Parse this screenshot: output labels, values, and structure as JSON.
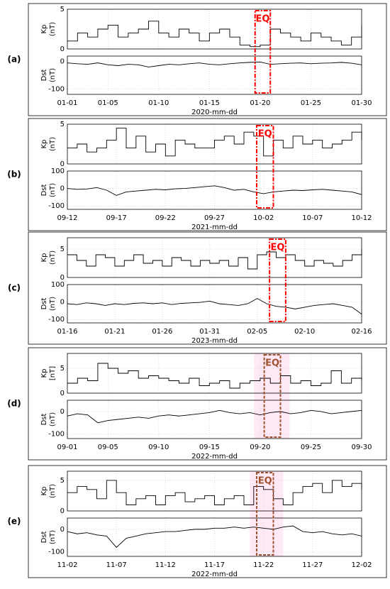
{
  "chart_data": [
    {
      "type": "line",
      "panel_label": "(a)",
      "xlabel": "2020-mm-dd",
      "categories": [
        "01-01",
        null,
        null,
        null,
        "01-05",
        null,
        null,
        null,
        null,
        "01-10",
        null,
        null,
        null,
        null,
        "01-15",
        null,
        null,
        null,
        null,
        "01-20",
        null,
        null,
        null,
        null,
        "01-25",
        null,
        null,
        null,
        null,
        "01-30"
      ],
      "kp": {
        "ylabel": [
          "Kp",
          "(nT)"
        ],
        "ylim": [
          0,
          5
        ],
        "yticks": [
          0,
          5
        ],
        "color": "#000000",
        "values": [
          1,
          2,
          1.5,
          2.5,
          3,
          1.5,
          2,
          2.5,
          3.5,
          2,
          1.5,
          2.5,
          2,
          1,
          2,
          2.5,
          1.5,
          0.5,
          0.3,
          0.5,
          2.5,
          2,
          1.5,
          1,
          2,
          1.5,
          1,
          0.5,
          1.5,
          3
        ]
      },
      "dst": {
        "ylabel": [
          "Dst",
          "(nT)"
        ],
        "ylim": [
          -120,
          20
        ],
        "yticks": [
          -100,
          0
        ],
        "color": "#000000",
        "values": [
          -5,
          -8,
          -10,
          -5,
          -12,
          -15,
          -10,
          -12,
          -20,
          -15,
          -10,
          -12,
          -8,
          -5,
          -10,
          -12,
          -8,
          -5,
          -3,
          -2,
          -10,
          -8,
          -6,
          -5,
          -8,
          -6,
          -5,
          -3,
          -6,
          -12
        ]
      },
      "annotation": "EQ",
      "eq_box": [
        18.5,
        20.0
      ],
      "eq_color": "#ff0000",
      "eq_dash": "6,2,2,2"
    },
    {
      "type": "line",
      "panel_label": "(b)",
      "xlabel": "2021-mm-dd",
      "categories": [
        "09-12",
        null,
        null,
        null,
        null,
        "09-17",
        null,
        null,
        null,
        null,
        "09-22",
        null,
        null,
        null,
        null,
        "09-27",
        null,
        null,
        null,
        null,
        "10-02",
        null,
        null,
        null,
        null,
        "10-07",
        null,
        null,
        null,
        null,
        "10-12"
      ],
      "kp": {
        "ylabel": [
          "Kp",
          "(nT)"
        ],
        "ylim": [
          0,
          5
        ],
        "yticks": [
          0,
          5
        ],
        "color": "#000000",
        "values": [
          2,
          2.5,
          1.5,
          2,
          3,
          4.5,
          2,
          3.5,
          1.5,
          2.5,
          1,
          3,
          2.5,
          2,
          2,
          3,
          3.5,
          2.5,
          4,
          3.5,
          1,
          3,
          2,
          3.5,
          2.5,
          3,
          2,
          2.5,
          3,
          4,
          3
        ]
      },
      "dst": {
        "ylabel": [
          "Dst",
          "(nT)"
        ],
        "ylim": [
          -120,
          100
        ],
        "yticks": [
          -100,
          0,
          100
        ],
        "color": "#000000",
        "values": [
          0,
          -5,
          -3,
          5,
          -10,
          -40,
          -20,
          -15,
          -10,
          -5,
          -8,
          -2,
          0,
          5,
          10,
          15,
          5,
          -10,
          -5,
          -20,
          -30,
          -20,
          -15,
          -10,
          -12,
          -8,
          -5,
          -10,
          -15,
          -20,
          -35
        ]
      },
      "annotation": "EQ",
      "eq_box": [
        19.3,
        21.0
      ],
      "eq_color": "#ff0000",
      "eq_dash": "6,2,2,2"
    },
    {
      "type": "line",
      "panel_label": "(c)",
      "xlabel": "2023-mm-dd",
      "categories": [
        "01-16",
        null,
        null,
        null,
        null,
        "01-21",
        null,
        null,
        null,
        null,
        "01-26",
        null,
        null,
        null,
        null,
        "01-31",
        null,
        null,
        null,
        null,
        "02-05",
        null,
        null,
        null,
        null,
        "02-10",
        null,
        null,
        null,
        null,
        null,
        "02-16"
      ],
      "kp": {
        "ylabel": [
          "Kp",
          "(nT)"
        ],
        "ylim": [
          0,
          7
        ],
        "yticks": [
          0,
          5
        ],
        "color": "#000000",
        "values": [
          4,
          3,
          2,
          4,
          3.5,
          2,
          3,
          4,
          2.5,
          3,
          2,
          3.5,
          3,
          2,
          3,
          2.5,
          3,
          2,
          3.5,
          1.5,
          4,
          4.5,
          3.5,
          4,
          3,
          2,
          3,
          2.5,
          2,
          3,
          4,
          5
        ]
      },
      "dst": {
        "ylabel": [
          "Dst",
          "(nT)"
        ],
        "ylim": [
          -120,
          100
        ],
        "yticks": [
          -100,
          0,
          100
        ],
        "color": "#000000",
        "values": [
          -10,
          -15,
          -5,
          -10,
          -20,
          -10,
          -15,
          -8,
          -5,
          -10,
          -5,
          -15,
          -8,
          -5,
          -2,
          5,
          -10,
          -15,
          -20,
          -10,
          20,
          -10,
          -25,
          -30,
          -40,
          -30,
          -20,
          -15,
          -10,
          -20,
          -30,
          -70
        ]
      },
      "annotation": "EQ",
      "eq_box": [
        21.3,
        23.0
      ],
      "eq_color": "#ff0000",
      "eq_dash": "6,2,2,2"
    },
    {
      "type": "line",
      "panel_label": "(d)",
      "xlabel": "2022-mm-dd",
      "categories": [
        "09-01",
        null,
        null,
        null,
        "09-05",
        null,
        null,
        null,
        null,
        "09-10",
        null,
        null,
        null,
        null,
        "09-15",
        null,
        null,
        null,
        null,
        "09-20",
        null,
        null,
        null,
        null,
        "09-25",
        null,
        null,
        null,
        null,
        "09-30"
      ],
      "kp": {
        "ylabel": [
          "Kp",
          "[nT]"
        ],
        "ylim": [
          0,
          8
        ],
        "yticks": [
          0,
          5
        ],
        "color": "#000000",
        "values": [
          2,
          3,
          2.5,
          6,
          5,
          4,
          4.5,
          3,
          3.5,
          3,
          2.5,
          2,
          3,
          1.5,
          2,
          2.5,
          1,
          2,
          2.5,
          3,
          2,
          3.5,
          2,
          2.5,
          1.5,
          2,
          4.5,
          2,
          3,
          2.5
        ]
      },
      "dst": {
        "ylabel": [
          "Dst",
          "(nT)"
        ],
        "ylim": [
          -120,
          50
        ],
        "yticks": [
          -100,
          0
        ],
        "color": "#000000",
        "values": [
          -20,
          -10,
          -15,
          -50,
          -40,
          -35,
          -30,
          -25,
          -30,
          -20,
          -15,
          -20,
          -15,
          -10,
          -5,
          5,
          -5,
          -10,
          -5,
          -15,
          -5,
          0,
          -10,
          -5,
          5,
          0,
          -10,
          -5,
          0,
          5
        ]
      },
      "annotation": "EQ",
      "eq_box": [
        19.4,
        21.0
      ],
      "eq_shade": [
        18.4,
        21.9
      ],
      "eq_color": "#a0522d",
      "eq_dash": "4,2"
    },
    {
      "type": "line",
      "panel_label": "(e)",
      "xlabel": "2022-mm-dd",
      "categories": [
        "11-02",
        null,
        null,
        null,
        null,
        "11-07",
        null,
        null,
        null,
        null,
        "11-12",
        null,
        null,
        null,
        null,
        "11-17",
        null,
        null,
        null,
        null,
        "11-22",
        null,
        null,
        null,
        null,
        "11-27",
        null,
        null,
        null,
        null,
        "12-02"
      ],
      "kp": {
        "ylabel": [
          "Kp",
          "(nT)"
        ],
        "ylim": [
          0,
          6.5
        ],
        "yticks": [
          0,
          5
        ],
        "color": "#000000",
        "values": [
          3,
          4,
          3.5,
          2,
          5,
          3,
          1,
          2,
          2.5,
          1,
          2.5,
          3,
          1.5,
          2,
          2.5,
          1,
          2,
          2.5,
          1,
          4,
          3.5,
          2,
          1,
          3,
          4,
          4.5,
          3,
          5,
          4,
          4.5,
          3.5
        ]
      },
      "dst": {
        "ylabel": [
          "Dst",
          "(nT)"
        ],
        "ylim": [
          -120,
          50
        ],
        "yticks": [
          -100,
          0
        ],
        "color": "#000000",
        "values": [
          -10,
          -20,
          -15,
          -25,
          -30,
          -80,
          -40,
          -30,
          -20,
          -15,
          -10,
          -10,
          -5,
          0,
          0,
          5,
          5,
          10,
          5,
          10,
          5,
          0,
          10,
          15,
          -10,
          -15,
          -10,
          -20,
          -25,
          -20,
          -30
        ]
      },
      "annotation": "EQ",
      "eq_box": [
        19.3,
        21.0
      ],
      "eq_shade": [
        18.6,
        22.0
      ],
      "eq_color": "#a0522d",
      "eq_dash": "4,2"
    }
  ]
}
